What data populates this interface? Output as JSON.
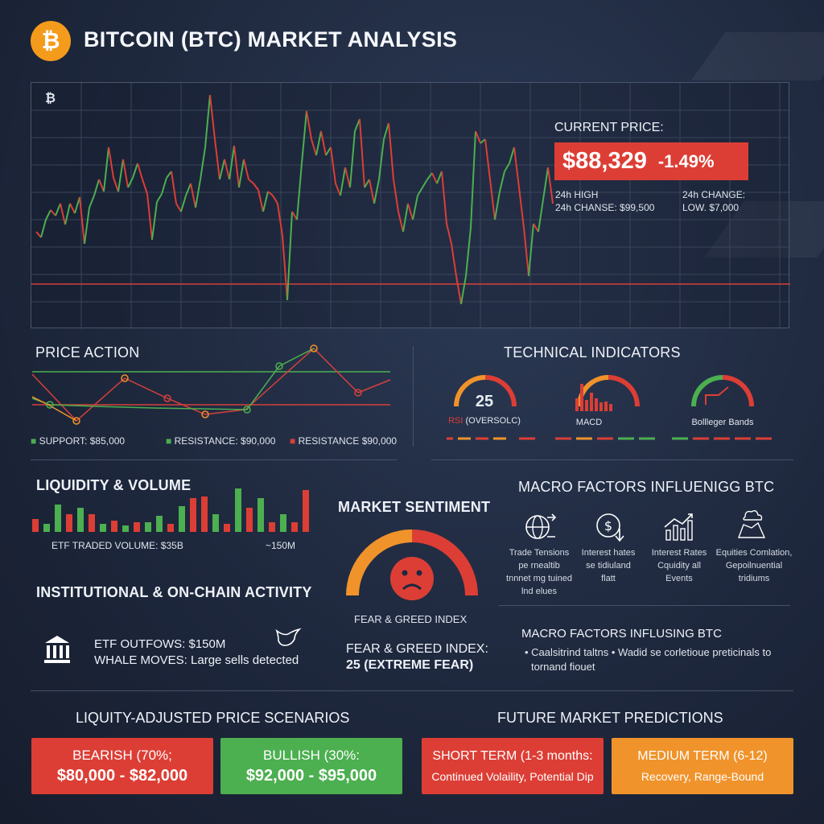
{
  "header": {
    "title": "BITCOIN (BTC) MARKET ANALYSIS",
    "logo_symbol": "₿"
  },
  "price_panel": {
    "chart_icon": "₿",
    "label": "CURRENT PRICE:",
    "price": "$88,329",
    "change": "-1.49%",
    "stat_left_1": "24h HIGH",
    "stat_left_2": "24h CHANSE: $99,500",
    "stat_right_1": "24h CHANGE:",
    "stat_right_2": "LOW. $7,000"
  },
  "price_action": {
    "title": "PRICE ACTION",
    "legend": [
      "SUPPORT: $85,000",
      "RESISTANCE: $90,000",
      "RESISTANCE $90,000"
    ]
  },
  "technical": {
    "title": "TECHNICAL INDICATORS",
    "rsi_value": "25",
    "rsi_label": "RSI (OVERSOLC)",
    "macd_label": "MACD",
    "bb_label": "Bollleger Bands"
  },
  "liquidity": {
    "title": "LIQUIDITY & VOLUME",
    "etf_volume": "ETF TRADED VOLUME: $35B",
    "side_value": "~150M"
  },
  "institutional": {
    "title": "INSTITUTIONAL & ON-CHAIN ACTIVITY",
    "line1": "ETF OUTFOWS: $150M",
    "line2": "WHALE MOVES: Large sells detected"
  },
  "sentiment": {
    "title": "MARKET SENTIMENT",
    "gauge_label": "FEAR & GREED INDEX",
    "index_label": "FEAR & GREED INDEX:",
    "index_value": "25 (EXTREME FEAR)"
  },
  "macro": {
    "title": "MACRO FACTORS INFLUENIGG BTC",
    "items": [
      {
        "icon": "globe-trade-icon",
        "caption": "Trade Tensions\npe rnealtib\ntnnnet mg tuined\nlnd elues"
      },
      {
        "icon": "dollar-down-icon",
        "caption": "Interest hates\nse tidiuland\nflatt"
      },
      {
        "icon": "bar-growth-icon",
        "caption": "Interest Rates\nCquidity all\nEvents"
      },
      {
        "icon": "map-cloud-icon",
        "caption": "Equities Comlation,\nGepoilnuential\ntridiums"
      }
    ],
    "title2": "MACRO FACTORS INFLUSING BTC",
    "bullets_line1": "• Caalsitrind taltns  •  Wadid se corletioue preticinals to",
    "bullets_line2": "tornand fiouet"
  },
  "scenarios": {
    "title": "LIQUITY-ADJUSTED PRICE SCENARIOS",
    "bearish_label": "BEARISH (70%;",
    "bearish_range": "$80,000 - $82,000",
    "bullish_label": "BULLISH (30%:",
    "bullish_range": "$92,000 - $95,000"
  },
  "predictions": {
    "title": "FUTURE MARKET PREDICTIONS",
    "short_label": "SHORT TERM (1-3 months:",
    "short_desc": "Continued Volaility, Potential Dip",
    "medium_label": "MEDIUM TERM (6-12)",
    "medium_desc": "Recovery, Range-Bound"
  },
  "colors": {
    "red": "#dc3e35",
    "green": "#4caf50",
    "orange": "#f0932b",
    "accent": "#f49b1c"
  }
}
